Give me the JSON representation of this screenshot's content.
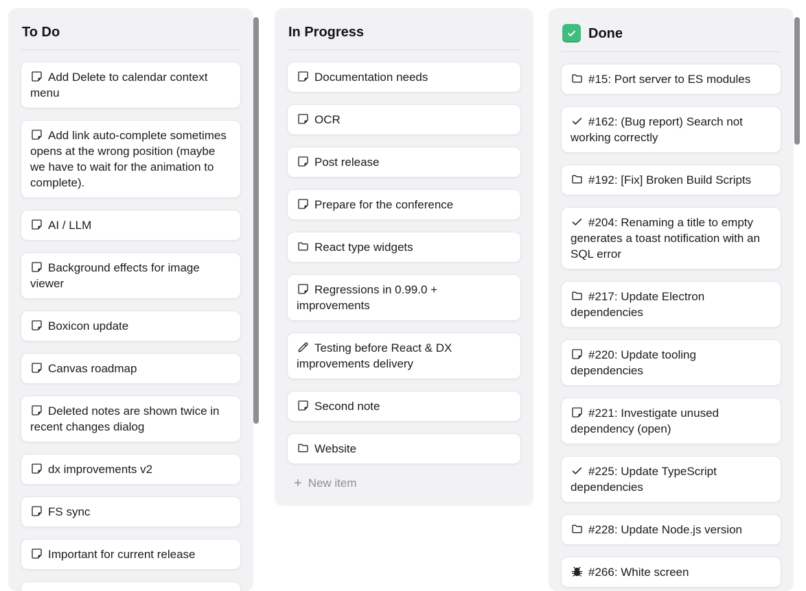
{
  "board": {
    "columns": [
      {
        "id": "todo",
        "title": "To Do",
        "cards": [
          {
            "icon": "note",
            "title": "Add Delete to calendar context menu"
          },
          {
            "icon": "note",
            "title": "Add link auto-complete sometimes opens at the wrong position (maybe we have to wait for the animation to complete)."
          },
          {
            "icon": "note",
            "title": "AI / LLM"
          },
          {
            "icon": "note",
            "title": "Background effects for image viewer"
          },
          {
            "icon": "note",
            "title": "Boxicon update"
          },
          {
            "icon": "note",
            "title": "Canvas roadmap"
          },
          {
            "icon": "note",
            "title": "Deleted notes are shown twice in recent changes dialog"
          },
          {
            "icon": "note",
            "title": "dx improvements v2"
          },
          {
            "icon": "note",
            "title": "FS sync"
          },
          {
            "icon": "note",
            "title": "Important for current release"
          },
          {
            "icon": null,
            "title": "",
            "partial": true
          }
        ]
      },
      {
        "id": "inprogress",
        "title": "In Progress",
        "new_item": {
          "plus": "+",
          "label": "New item"
        },
        "cards": [
          {
            "icon": "note",
            "title": "Documentation needs"
          },
          {
            "icon": "note",
            "title": "OCR"
          },
          {
            "icon": "note",
            "title": "Post release"
          },
          {
            "icon": "note",
            "title": "Prepare for the conference"
          },
          {
            "icon": "folder",
            "title": "React type widgets"
          },
          {
            "icon": "note",
            "title": "Regressions in 0.99.0 + improvements"
          },
          {
            "icon": "pencil",
            "title": "Testing before React & DX improvements delivery"
          },
          {
            "icon": "note",
            "title": "Second note"
          },
          {
            "icon": "folder",
            "title": "Website"
          }
        ]
      },
      {
        "id": "done",
        "title": "Done",
        "header_icon": "checked-checkbox",
        "cards": [
          {
            "icon": "folder",
            "title": "#15: Port server to ES modules"
          },
          {
            "icon": "check",
            "title": "#162: (Bug report) Search not working correctly"
          },
          {
            "icon": "folder",
            "title": "#192: [Fix] Broken Build Scripts"
          },
          {
            "icon": "check",
            "title": "#204: Renaming a title to empty generates a toast notification with an SQL error"
          },
          {
            "icon": "folder",
            "title": "#217: Update Electron dependencies"
          },
          {
            "icon": "note",
            "title": "#220: Update tooling dependencies"
          },
          {
            "icon": "note",
            "title": "#221: Investigate unused dependency (open)"
          },
          {
            "icon": "check",
            "title": "#225: Update TypeScript dependencies"
          },
          {
            "icon": "folder",
            "title": "#228: Update Node.js version"
          },
          {
            "icon": "bug",
            "title": "#266: White screen"
          }
        ]
      }
    ]
  },
  "colors": {
    "done_checkbox_green": "#3ebd7e",
    "column_background": "#f2f1f4",
    "card_background": "#ffffff",
    "card_border": "#e5e4e8",
    "text": "#1b1a1f",
    "muted_text": "#8f8f94",
    "scrollbar_thumb": "#8e8e91"
  }
}
